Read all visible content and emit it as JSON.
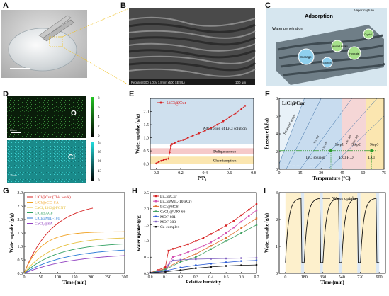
{
  "panels": {
    "A": {
      "label": "A"
    },
    "B": {
      "label": "B",
      "sem_info": "Regulus8100 5.0kV 7.8mm x500 SE(UL)",
      "sem_scale": "100 μm"
    },
    "C": {
      "label": "C",
      "title": "Adsorption",
      "subtitle": "Water penetration",
      "bubbles": [
        "Storage",
        "Solution",
        "Saturated solution",
        "Hydrate",
        "Crystal"
      ],
      "vapor": "Vapor capture"
    },
    "D": {
      "label": "D",
      "maps": [
        {
          "element": "O",
          "scalebar": "20 um",
          "colorbar": [
            "0",
            "2",
            "4",
            "6",
            "8"
          ]
        },
        {
          "element": "Cl",
          "scalebar": "20 um",
          "colorbar": [
            "0",
            "13",
            "26",
            "39",
            "54"
          ]
        }
      ]
    }
  },
  "chart_data": [
    {
      "panel": "E",
      "type": "line",
      "legend": "LiCl@Cur",
      "xlabel": "P/P₀",
      "ylabel": "Water uptake (g/g)",
      "xlim": [
        -0.05,
        0.8
      ],
      "ylim": [
        -0.2,
        2.5
      ],
      "xticks": [
        "0.0",
        "0.2",
        "0.4",
        "0.6",
        "0.8"
      ],
      "yticks": [
        "0.0",
        "0.5",
        "1.0",
        "1.5",
        "2.0"
      ],
      "bands": [
        {
          "name": "Chemisorption",
          "from": 0,
          "to": 0.28,
          "color": "#fbe6b0"
        },
        {
          "name": "Deliquescence",
          "from": 0.38,
          "to": 0.6,
          "color": "#f6c9c9"
        },
        {
          "name": "Adsorption of LiCl solution",
          "from": 0.76,
          "to": 2.5,
          "color": "#cfe0ee"
        }
      ],
      "series": [
        {
          "name": "LiCl@Cur",
          "color": "#d62020",
          "x": [
            0.0,
            0.02,
            0.04,
            0.06,
            0.08,
            0.1,
            0.11,
            0.12,
            0.13,
            0.15,
            0.18,
            0.22,
            0.26,
            0.3,
            0.35,
            0.4,
            0.45,
            0.5,
            0.55,
            0.6,
            0.65,
            0.7,
            0.73
          ],
          "y": [
            0.02,
            0.08,
            0.12,
            0.15,
            0.18,
            0.2,
            0.45,
            0.7,
            0.76,
            0.8,
            0.86,
            0.92,
            1.0,
            1.08,
            1.17,
            1.27,
            1.38,
            1.5,
            1.63,
            1.78,
            1.93,
            2.1,
            2.22
          ]
        }
      ]
    },
    {
      "panel": "F",
      "type": "area",
      "legend": "LiCl@Cur",
      "xlabel": "Temperature (°C)",
      "ylabel": "Pressure (kPa)",
      "xlim": [
        0,
        75
      ],
      "ylim": [
        0,
        8
      ],
      "xticks": [
        "0",
        "15",
        "30",
        "45",
        "60",
        "75"
      ],
      "yticks": [
        "0",
        "2",
        "4",
        "6",
        "8"
      ],
      "region_labels": [
        "Saturated water",
        "LiCl solution",
        "LiCl·H₂O",
        "LiCl"
      ],
      "steps": [
        "Step1",
        "Step2",
        "Step3"
      ],
      "rh_labels": [
        "30% RH",
        "6.3% RH",
        "4.4% RH",
        "3.3% RH"
      ],
      "operating_pressure": 2.1,
      "step_points": [
        {
          "x": 37,
          "y": 2.1
        },
        {
          "x": 66,
          "y": 2.1
        }
      ]
    },
    {
      "panel": "G",
      "type": "line",
      "xlabel": "Time (min)",
      "ylabel": "Water uptake (g/g)",
      "xlim": [
        0,
        300
      ],
      "ylim": [
        0,
        3.0
      ],
      "xticks": [
        "0",
        "50",
        "100",
        "150",
        "200",
        "250",
        "300"
      ],
      "yticks": [
        "0.0",
        "0.5",
        "1.0",
        "1.5",
        "2.0",
        "2.5",
        "3.0"
      ],
      "series": [
        {
          "name": "LiCl@Cur (This work)",
          "color": "#d62020",
          "final": 2.65,
          "k": 0.012,
          "tend": 205
        },
        {
          "name": "LiCl@rGO-SA",
          "color": "#f0a020",
          "final": 1.55,
          "k": 0.02,
          "tend": 300
        },
        {
          "name": "CaCl₂ LiCl@FCNT",
          "color": "#e6c040",
          "final": 1.35,
          "k": 0.012,
          "tend": 300
        },
        {
          "name": "LiCl@ACF",
          "color": "#30a060",
          "final": 1.15,
          "k": 0.01,
          "tend": 300
        },
        {
          "name": "LiCl@MIL-101",
          "color": "#2a7bd6",
          "final": 0.95,
          "k": 0.008,
          "tend": 300
        },
        {
          "name": "CaCl₂@SA",
          "color": "#9040c0",
          "final": 0.75,
          "k": 0.007,
          "tend": 300
        }
      ]
    },
    {
      "panel": "H",
      "type": "line",
      "xlabel": "Relative humidity",
      "ylabel": "Water uptake (g/g)",
      "xlim": [
        0,
        0.7
      ],
      "ylim": [
        0,
        2.5
      ],
      "xticks": [
        "0.0",
        "0.1",
        "0.2",
        "0.3",
        "0.4",
        "0.5",
        "0.6",
        "0.7"
      ],
      "yticks": [
        "0.0",
        "0.5",
        "1.0",
        "1.5",
        "2.0",
        "2.5"
      ],
      "series": [
        {
          "name": "LiCl@Cur",
          "color": "#d62020",
          "x": [
            0,
            0.05,
            0.1,
            0.12,
            0.15,
            0.2,
            0.25,
            0.3,
            0.35,
            0.4,
            0.45,
            0.5,
            0.55,
            0.6,
            0.65,
            0.7
          ],
          "y": [
            0.02,
            0.1,
            0.2,
            0.7,
            0.76,
            0.83,
            0.9,
            1.0,
            1.1,
            1.22,
            1.35,
            1.48,
            1.63,
            1.8,
            1.97,
            2.15
          ]
        },
        {
          "name": "LiCl@MIL-101(Cr)",
          "color": "#d44fb0",
          "x": [
            0,
            0.05,
            0.1,
            0.15,
            0.2,
            0.25,
            0.3,
            0.35,
            0.4,
            0.45,
            0.5,
            0.55,
            0.6,
            0.65,
            0.7
          ],
          "y": [
            0.02,
            0.08,
            0.14,
            0.5,
            0.58,
            0.66,
            0.75,
            0.85,
            0.96,
            1.1,
            1.25,
            1.42,
            1.6,
            1.78,
            1.95
          ]
        },
        {
          "name": "LiCl@HCS",
          "color": "#e07030",
          "x": [
            0,
            0.1,
            0.2,
            0.3,
            0.4,
            0.5,
            0.6,
            0.7
          ],
          "y": [
            0.02,
            0.15,
            0.4,
            0.6,
            0.85,
            1.1,
            1.4,
            1.7
          ]
        },
        {
          "name": "CaCl₂@UIO-66",
          "color": "#40a060",
          "x": [
            0,
            0.1,
            0.2,
            0.3,
            0.4,
            0.5,
            0.6,
            0.7
          ],
          "y": [
            0.02,
            0.12,
            0.35,
            0.5,
            0.75,
            1.0,
            1.25,
            1.5
          ]
        },
        {
          "name": "MOF-801",
          "color": "#2a5bd6",
          "x": [
            0,
            0.1,
            0.2,
            0.3,
            0.4,
            0.5,
            0.6,
            0.7
          ],
          "y": [
            0.02,
            0.08,
            0.18,
            0.25,
            0.3,
            0.34,
            0.38,
            0.4
          ]
        },
        {
          "name": "MOF-303",
          "color": "#8060c0",
          "x": [
            0,
            0.1,
            0.12,
            0.15,
            0.2,
            0.3,
            0.4,
            0.5,
            0.6,
            0.7
          ],
          "y": [
            0.02,
            0.05,
            0.25,
            0.4,
            0.42,
            0.44,
            0.45,
            0.46,
            0.47,
            0.48
          ]
        },
        {
          "name": "Cu-complex",
          "color": "#111111",
          "x": [
            0,
            0.1,
            0.2,
            0.3,
            0.4,
            0.5,
            0.6,
            0.7
          ],
          "y": [
            0.02,
            0.05,
            0.1,
            0.16,
            0.2,
            0.23,
            0.25,
            0.26
          ]
        }
      ]
    },
    {
      "panel": "I",
      "type": "line",
      "legend": "Water uptake",
      "xlabel": "Time (min)",
      "ylabel": "Water uptake (g/g)",
      "xlim": [
        -60,
        960
      ],
      "ylim": [
        0,
        3
      ],
      "xticks": [
        "0",
        "180",
        "360",
        "540",
        "720",
        "900"
      ],
      "yticks": [
        "0",
        "1",
        "2",
        "3"
      ],
      "cycles": 5,
      "cycle_period": 180,
      "adsorption_minutes": 150,
      "peak": 2.8,
      "base": 0.4,
      "colors": {
        "adsorption": "#fdf0cc",
        "desorption": "#dce8f4",
        "line": "#111111"
      }
    }
  ]
}
